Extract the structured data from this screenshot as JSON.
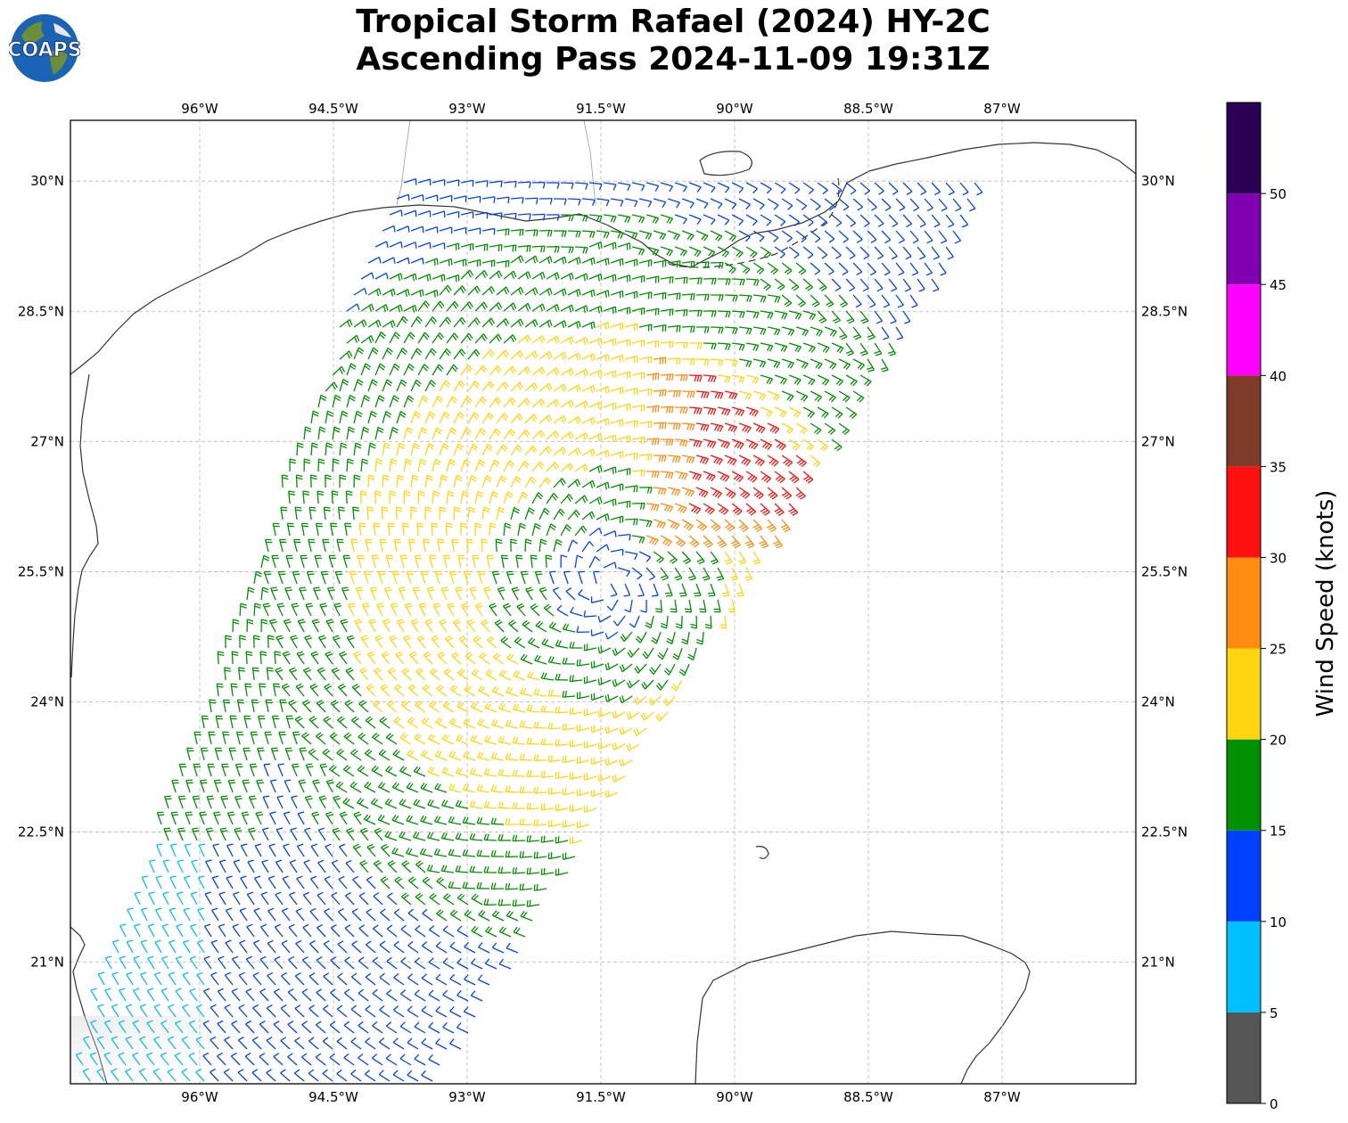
{
  "logo": {
    "text": "COAPS",
    "icon": "globe-logo-icon"
  },
  "title": {
    "line1": "Tropical Storm Rafael (2024) HY-2C",
    "line2": "Ascending Pass 2024-11-09 19:31Z"
  },
  "map": {
    "lon_range": [
      -97.45,
      -85.5
    ],
    "lat_range": [
      19.6,
      30.7
    ],
    "lon_ticks": [
      {
        "value": -96,
        "label": "96°W"
      },
      {
        "value": -94.5,
        "label": "94.5°W"
      },
      {
        "value": -93,
        "label": "93°W"
      },
      {
        "value": -91.5,
        "label": "91.5°W"
      },
      {
        "value": -90,
        "label": "90°W"
      },
      {
        "value": -88.5,
        "label": "88.5°W"
      },
      {
        "value": -87,
        "label": "87°W"
      }
    ],
    "lat_ticks": [
      {
        "value": 30,
        "label": "30°N"
      },
      {
        "value": 28.5,
        "label": "28.5°N"
      },
      {
        "value": 27,
        "label": "27°N"
      },
      {
        "value": 25.5,
        "label": "25.5°N"
      },
      {
        "value": 24,
        "label": "24°N"
      },
      {
        "value": 22.5,
        "label": "22.5°N"
      },
      {
        "value": 21,
        "label": "21°N"
      }
    ],
    "grid": true,
    "storm_center": {
      "lon": -91.45,
      "lat": 25.35
    }
  },
  "colorbar": {
    "label": "Wind Speed (knots)",
    "ticks": [
      "0",
      "5",
      "10",
      "15",
      "20",
      "25",
      "30",
      "35",
      "40",
      "45",
      "50"
    ],
    "bins": [
      {
        "min": 0,
        "max": 5,
        "color": "#555555"
      },
      {
        "min": 5,
        "max": 10,
        "color": "#00bfff"
      },
      {
        "min": 10,
        "max": 15,
        "color": "#0040ff"
      },
      {
        "min": 15,
        "max": 20,
        "color": "#009000"
      },
      {
        "min": 20,
        "max": 25,
        "color": "#ffd510"
      },
      {
        "min": 25,
        "max": 30,
        "color": "#ff8c10"
      },
      {
        "min": 30,
        "max": 35,
        "color": "#ff1010"
      },
      {
        "min": 35,
        "max": 40,
        "color": "#7f3b2a"
      },
      {
        "min": 40,
        "max": 45,
        "color": "#ff00ff"
      },
      {
        "min": 45,
        "max": 50,
        "color": "#8000b0"
      },
      {
        "min": 50,
        "max": 55,
        "color": "#2c0055"
      }
    ]
  }
}
